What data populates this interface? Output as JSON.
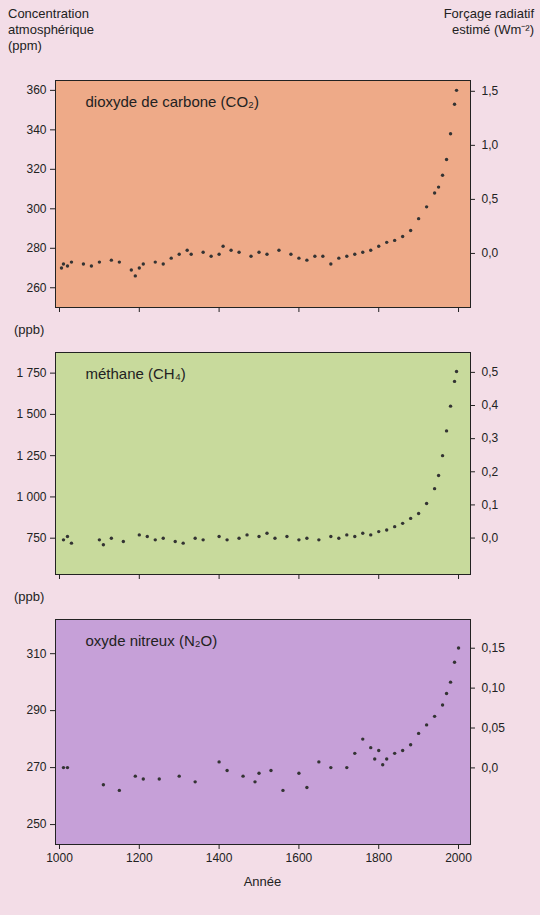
{
  "chart_data": [
    {
      "type": "scatter",
      "title": "dioxyde de carbone (CO₂)",
      "y_label": "Concentration atmosphérique (ppm)",
      "y2_label": "Forçage radiatif estimé (Wm⁻²)",
      "x": [
        1005,
        1010,
        1020,
        1030,
        1060,
        1080,
        1100,
        1130,
        1150,
        1180,
        1190,
        1200,
        1210,
        1240,
        1260,
        1280,
        1300,
        1320,
        1330,
        1360,
        1380,
        1400,
        1410,
        1430,
        1450,
        1480,
        1500,
        1520,
        1550,
        1580,
        1600,
        1620,
        1640,
        1660,
        1680,
        1700,
        1720,
        1740,
        1760,
        1780,
        1800,
        1820,
        1840,
        1860,
        1880,
        1900,
        1920,
        1940,
        1950,
        1960,
        1970,
        1980,
        1990,
        1995
      ],
      "values": [
        270,
        272,
        271,
        273,
        272,
        271,
        273,
        274,
        273,
        269,
        266,
        270,
        272,
        273,
        272,
        275,
        277,
        279,
        277,
        278,
        276,
        277,
        281,
        279,
        278,
        276,
        278,
        277,
        279,
        277,
        275,
        274,
        276,
        276,
        272,
        275,
        276,
        277,
        278,
        279,
        281,
        283,
        284,
        286,
        289,
        295,
        301,
        308,
        311,
        317,
        325,
        338,
        353,
        360
      ],
      "color": "#333333",
      "marker": "circle",
      "xlim": [
        990,
        2030
      ],
      "xticks": [
        1000,
        1200,
        1400,
        1600,
        1800,
        2000
      ],
      "ylim": [
        250,
        365
      ],
      "yticks": [
        260,
        280,
        300,
        320,
        340,
        360
      ],
      "y2lim": [
        -0.5,
        1.6
      ],
      "y2ticks": [
        {
          "value": 0,
          "label": "0,0"
        },
        {
          "value": 0.5,
          "label": "0,5"
        },
        {
          "value": 1,
          "label": "1,0"
        },
        {
          "value": 1.5,
          "label": "1,5"
        }
      ],
      "grid": false,
      "tick_labels": "y"
    },
    {
      "type": "scatter",
      "title": "méthane (CH₄)",
      "y_label": "(ppb)",
      "x": [
        1010,
        1020,
        1030,
        1100,
        1110,
        1130,
        1160,
        1200,
        1220,
        1240,
        1260,
        1290,
        1310,
        1340,
        1360,
        1400,
        1420,
        1450,
        1470,
        1500,
        1520,
        1540,
        1570,
        1600,
        1620,
        1650,
        1680,
        1700,
        1720,
        1740,
        1760,
        1780,
        1800,
        1820,
        1840,
        1860,
        1880,
        1900,
        1920,
        1940,
        1950,
        1960,
        1970,
        1980,
        1990,
        1995
      ],
      "values": [
        740,
        760,
        720,
        740,
        710,
        750,
        730,
        770,
        760,
        740,
        750,
        730,
        720,
        750,
        740,
        760,
        740,
        750,
        770,
        760,
        780,
        750,
        760,
        740,
        750,
        740,
        760,
        750,
        770,
        760,
        780,
        770,
        790,
        800,
        820,
        840,
        870,
        900,
        960,
        1050,
        1130,
        1250,
        1400,
        1550,
        1700,
        1760
      ],
      "color": "#333333",
      "marker": "circle",
      "xlim": [
        990,
        2030
      ],
      "xticks": [
        1000,
        1200,
        1400,
        1600,
        1800,
        2000
      ],
      "ylim": [
        530,
        1875
      ],
      "yticks": [
        750,
        {
          "value": 1000,
          "label": "1 000"
        },
        {
          "value": 1250,
          "label": "1 250"
        },
        {
          "value": 1500,
          "label": "1 500"
        },
        {
          "value": 1750,
          "label": "1 750"
        }
      ],
      "y2lim": [
        -0.11,
        0.56
      ],
      "y2ticks": [
        {
          "value": 0,
          "label": "0,0"
        },
        {
          "value": 0.1,
          "label": "0,1"
        },
        {
          "value": 0.2,
          "label": "0,2"
        },
        {
          "value": 0.3,
          "label": "0,3"
        },
        {
          "value": 0.4,
          "label": "0,4"
        },
        {
          "value": 0.5,
          "label": "0,5"
        }
      ],
      "grid": false,
      "tick_labels": "y"
    },
    {
      "type": "scatter",
      "title": "oxyde nitreux (N₂O)",
      "y_label": "(ppb)",
      "x_label": "Année",
      "x": [
        1010,
        1020,
        1110,
        1150,
        1190,
        1210,
        1250,
        1300,
        1340,
        1400,
        1420,
        1460,
        1490,
        1500,
        1530,
        1560,
        1600,
        1620,
        1650,
        1680,
        1720,
        1740,
        1760,
        1780,
        1790,
        1800,
        1810,
        1820,
        1840,
        1860,
        1880,
        1900,
        1920,
        1940,
        1960,
        1970,
        1980,
        1990,
        2000
      ],
      "values": [
        270,
        270,
        264,
        262,
        267,
        266,
        266,
        267,
        265,
        272,
        269,
        267,
        265,
        268,
        269,
        262,
        268,
        263,
        272,
        270,
        270,
        275,
        280,
        277,
        273,
        276,
        271,
        273,
        275,
        276,
        278,
        282,
        285,
        288,
        292,
        296,
        300,
        307,
        312
      ],
      "color": "#333333",
      "marker": "circle",
      "xlim": [
        990,
        2030
      ],
      "xticks": [
        1000,
        1200,
        1400,
        1600,
        1800,
        2000
      ],
      "ylim": [
        243,
        322
      ],
      "yticks": [
        250,
        270,
        290,
        310
      ],
      "y2lim": [
        -0.096,
        0.186
      ],
      "y2ticks": [
        {
          "value": 0,
          "label": "0,0"
        },
        {
          "value": 0.05,
          "label": "0,05"
        },
        {
          "value": 0.1,
          "label": "0,10"
        },
        {
          "value": 0.15,
          "label": "0,15"
        }
      ],
      "grid": false,
      "tick_labels": true
    }
  ]
}
